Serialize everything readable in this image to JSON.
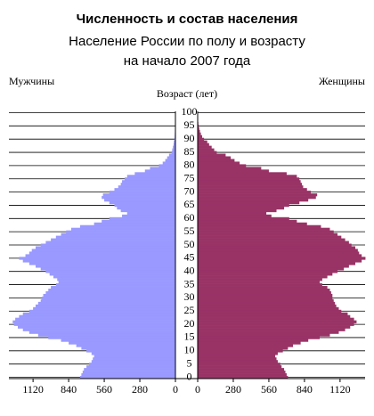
{
  "chart_data": {
    "type": "pyramid",
    "title": "Численность и состав населения",
    "subtitle": "Население России по полу и возрасту",
    "date_line": "на начало 2007 года",
    "y_label": "Возраст (лет)",
    "categories": [
      0,
      null,
      null,
      null,
      null,
      5,
      null,
      null,
      null,
      null,
      10,
      null,
      null,
      null,
      null,
      15,
      null,
      null,
      null,
      null,
      20,
      null,
      null,
      null,
      null,
      25,
      null,
      null,
      null,
      null,
      30,
      null,
      null,
      null,
      null,
      35,
      null,
      null,
      null,
      null,
      40,
      null,
      null,
      null,
      null,
      45,
      null,
      null,
      null,
      null,
      50,
      null,
      null,
      null,
      null,
      55,
      null,
      null,
      null,
      null,
      60,
      null,
      null,
      null,
      null,
      65,
      null,
      null,
      null,
      null,
      70,
      null,
      null,
      null,
      null,
      75,
      null,
      null,
      null,
      null,
      80,
      null,
      null,
      null,
      null,
      85,
      null,
      null,
      null,
      null,
      90,
      null,
      null,
      null,
      null,
      95,
      null,
      null,
      null,
      null,
      100
    ],
    "xlim": [
      0,
      1310
    ],
    "xticks": [
      0,
      280,
      560,
      840,
      1120
    ],
    "grid": true,
    "series": [
      {
        "name": "Мужчины",
        "color": "#9999ff",
        "side": "left",
        "values": [
          750,
          740,
          730,
          720,
          700,
          680,
          660,
          650,
          640,
          660,
          700,
          740,
          780,
          840,
          900,
          1000,
          1080,
          1150,
          1200,
          1240,
          1270,
          1280,
          1260,
          1230,
          1200,
          1150,
          1120,
          1100,
          1080,
          1060,
          1050,
          1040,
          1020,
          1000,
          980,
          940,
          920,
          930,
          960,
          990,
          1020,
          1060,
          1100,
          1150,
          1200,
          1230,
          1180,
          1150,
          1130,
          1100,
          1060,
          1020,
          980,
          940,
          900,
          860,
          820,
          750,
          640,
          580,
          520,
          420,
          380,
          430,
          460,
          480,
          520,
          560,
          580,
          570,
          520,
          480,
          450,
          430,
          420,
          400,
          380,
          320,
          240,
          200,
          130,
          100,
          80,
          65,
          50,
          30,
          25,
          20,
          15,
          12,
          8,
          6,
          5,
          4,
          3,
          2,
          1,
          1,
          1,
          0,
          0
        ]
      },
      {
        "name": "Женщины",
        "color": "#993366",
        "side": "right",
        "values": [
          710,
          700,
          690,
          680,
          660,
          650,
          630,
          620,
          610,
          630,
          670,
          710,
          750,
          810,
          870,
          960,
          1040,
          1110,
          1160,
          1200,
          1230,
          1250,
          1230,
          1200,
          1180,
          1130,
          1110,
          1090,
          1080,
          1070,
          1060,
          1060,
          1050,
          1040,
          1020,
          980,
          960,
          980,
          1020,
          1060,
          1100,
          1150,
          1190,
          1240,
          1290,
          1320,
          1290,
          1270,
          1260,
          1240,
          1210,
          1190,
          1160,
          1130,
          1100,
          1070,
          1040,
          970,
          860,
          780,
          720,
          580,
          540,
          620,
          680,
          720,
          800,
          870,
          930,
          940,
          890,
          860,
          830,
          820,
          810,
          800,
          780,
          700,
          560,
          500,
          380,
          330,
          290,
          260,
          220,
          150,
          130,
          110,
          90,
          75,
          50,
          35,
          25,
          18,
          12,
          8,
          5,
          3,
          2,
          1,
          1
        ]
      }
    ]
  }
}
